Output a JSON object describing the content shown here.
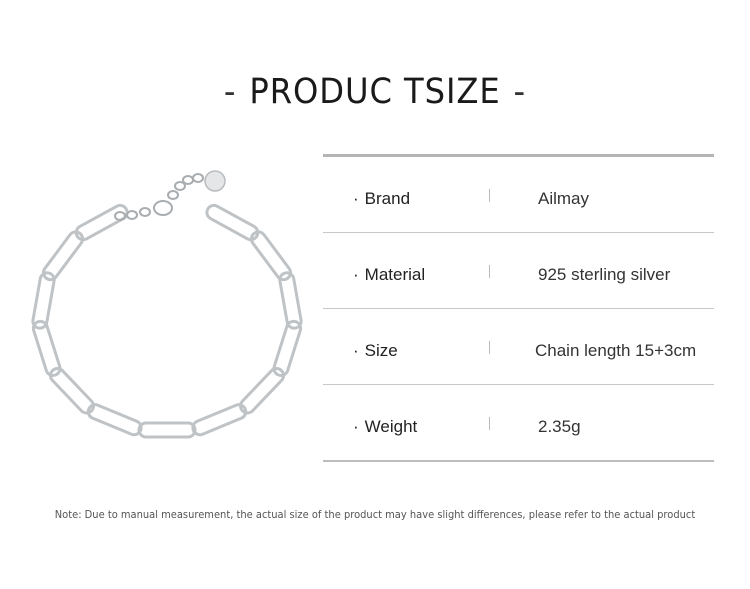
{
  "title": {
    "dash_left": "-",
    "text": "PRODUC TSIZE",
    "dash_right": "-"
  },
  "specs": [
    {
      "label": "Brand",
      "value": "Ailmay"
    },
    {
      "label": "Material",
      "value": "925 sterling silver"
    },
    {
      "label": "Size",
      "value": "Chain length 15+3cm"
    },
    {
      "label": "Weight",
      "value": "2.35g"
    }
  ],
  "bullet": "·",
  "note": "Note: Due to manual measurement, the actual size of the product may have slight differences, please refer to the actual product",
  "product_image": "silver-paperclip-chain-bracelet"
}
